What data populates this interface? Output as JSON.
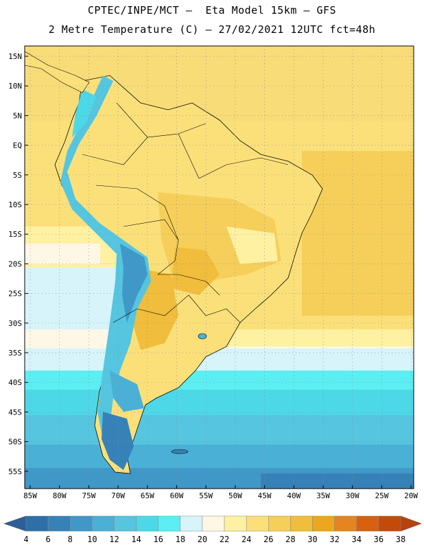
{
  "header": {
    "line1": "CPTEC/INPE/MCT –  Eta Model 15km – GFS",
    "line2": "2 Metre Temperature (C) – 27/02/2021 12UTC fct=48h"
  },
  "map": {
    "lat_ticks": [
      "15N",
      "10N",
      "5N",
      "EQ",
      "5S",
      "10S",
      "15S",
      "20S",
      "25S",
      "30S",
      "35S",
      "40S",
      "45S",
      "50S",
      "55S"
    ],
    "lon_ticks": [
      "85W",
      "80W",
      "75W",
      "70W",
      "65W",
      "60W",
      "55W",
      "50W",
      "45W",
      "40W",
      "35W",
      "30W",
      "25W",
      "20W"
    ]
  },
  "legend": {
    "levels": [
      "4",
      "6",
      "8",
      "10",
      "12",
      "14",
      "16",
      "18",
      "20",
      "22",
      "24",
      "26",
      "28",
      "30",
      "32",
      "34",
      "36",
      "38"
    ],
    "colors": [
      "#2f6fa8",
      "#3682b8",
      "#3f98c8",
      "#4ab0d6",
      "#55c5e0",
      "#4dd8e8",
      "#5ceef2",
      "#d6f4fa",
      "#fff7e6",
      "#fef1a2",
      "#fbe07a",
      "#f5cf5a",
      "#f0bd3c",
      "#eda620",
      "#e58420",
      "#d8600f",
      "#c44a0a"
    ],
    "low_arrow_color": "#2c5f99",
    "high_arrow_color": "#b8420c"
  }
}
